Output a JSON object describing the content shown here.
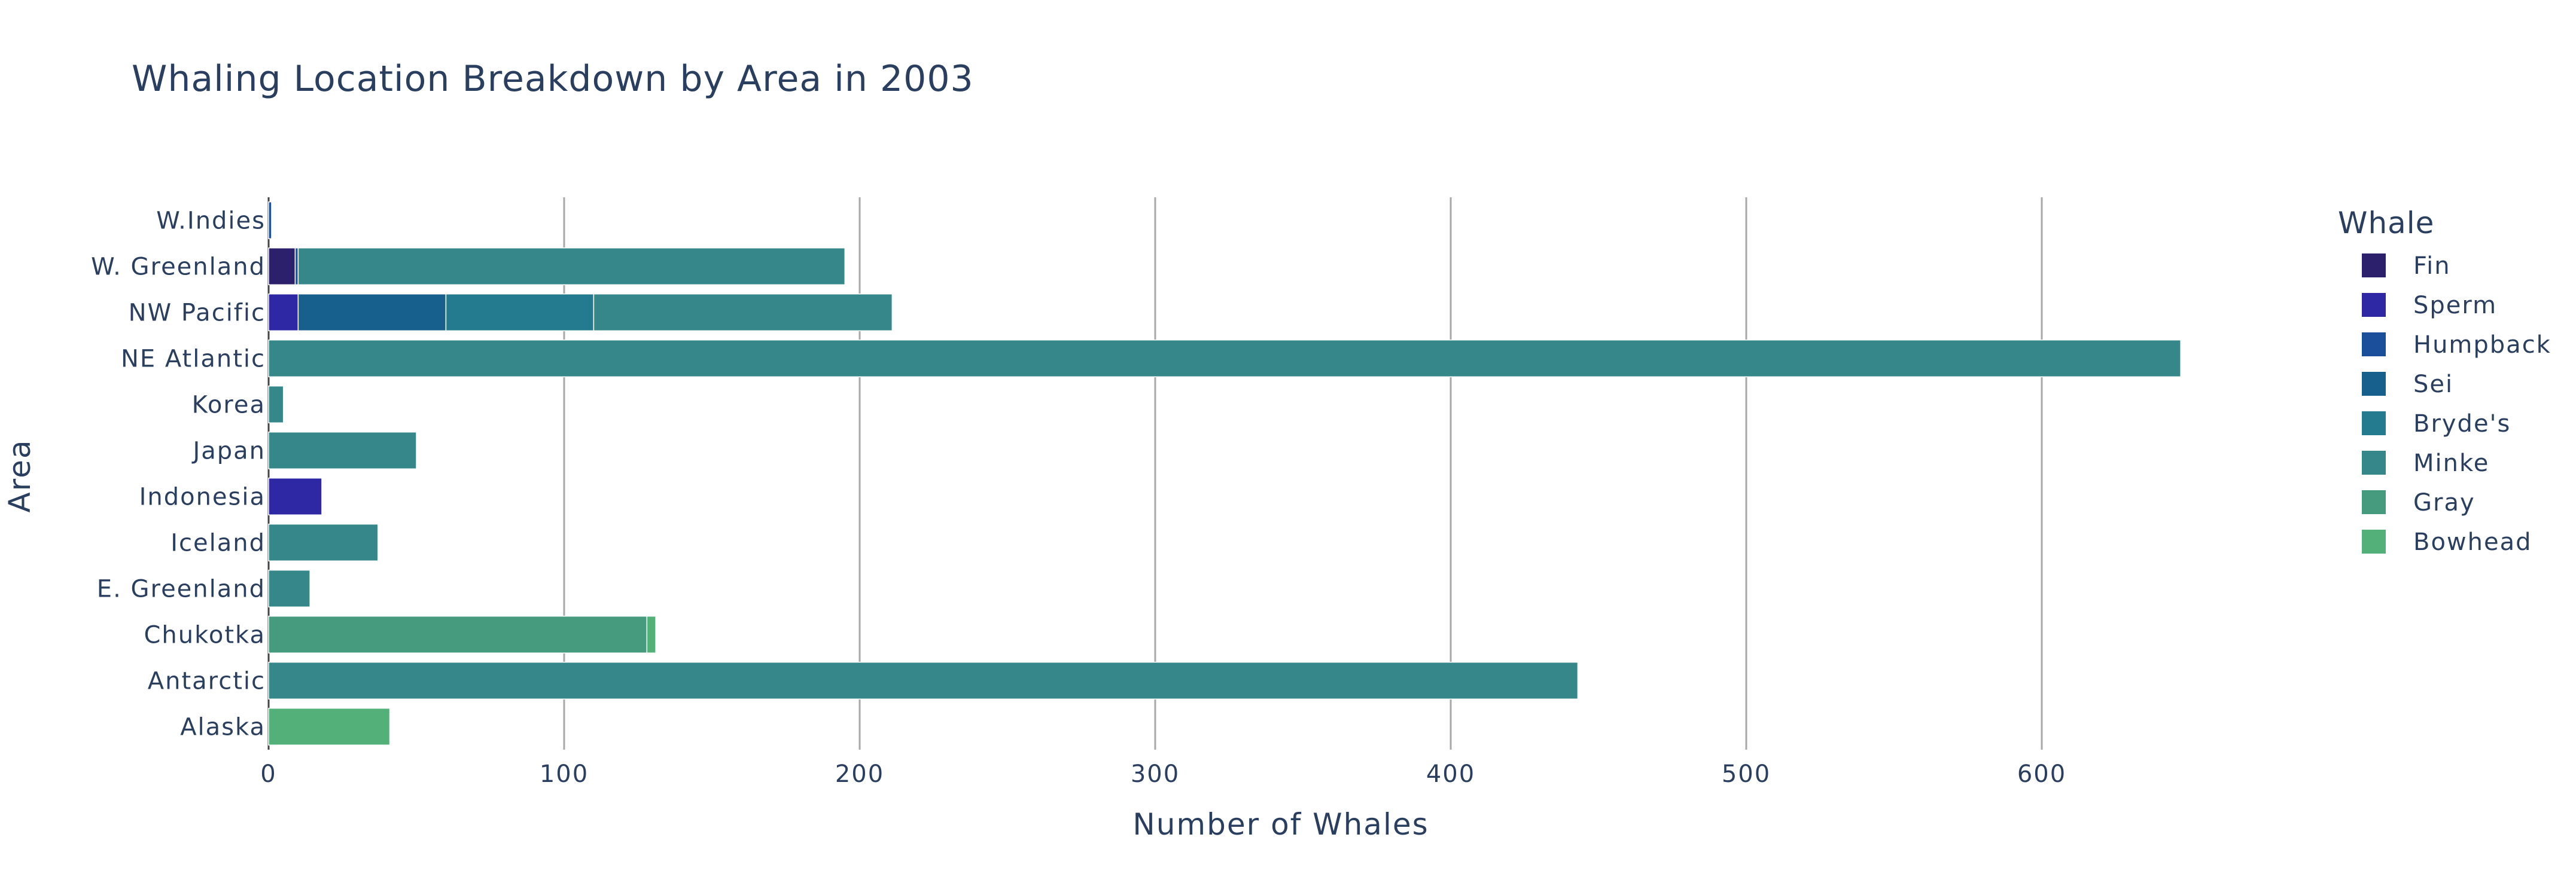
{
  "chart_data": {
    "type": "bar",
    "orientation": "horizontal",
    "barmode": "stack",
    "title": "Whaling Location Breakdown by Area in 2003",
    "xlabel": "Number of Whales",
    "ylabel": "Area",
    "xlim": [
      0,
      650
    ],
    "x_ticks": [
      "0",
      "100",
      "200",
      "300",
      "400",
      "500",
      "600"
    ],
    "grid": true,
    "legend_title": "Whale",
    "legend_position": "right",
    "categories": [
      "Alaska",
      "Antarctic",
      "Chukotka",
      "E. Greenland",
      "Iceland",
      "Indonesia",
      "Japan",
      "Korea",
      "NE Atlantic",
      "NW Pacific",
      "W. Greenland",
      "W.Indies"
    ],
    "series": [
      {
        "name": "Fin",
        "color": "#2c1f6b",
        "values": [
          0,
          0,
          0,
          0,
          0,
          0,
          0,
          0,
          0,
          0,
          9,
          0
        ]
      },
      {
        "name": "Sperm",
        "color": "#2f28a5",
        "values": [
          0,
          0,
          0,
          0,
          0,
          18,
          0,
          0,
          0,
          10,
          0,
          0
        ]
      },
      {
        "name": "Humpback",
        "color": "#1b4f9c",
        "values": [
          0,
          0,
          0,
          0,
          0,
          0,
          0,
          0,
          0,
          0,
          1,
          1
        ]
      },
      {
        "name": "Sei",
        "color": "#175f8c",
        "values": [
          0,
          0,
          0,
          0,
          0,
          0,
          0,
          0,
          0,
          50,
          0,
          0
        ]
      },
      {
        "name": "Bryde's",
        "color": "#247a8f",
        "values": [
          0,
          0,
          0,
          0,
          0,
          0,
          0,
          0,
          0,
          50,
          0,
          0
        ]
      },
      {
        "name": "Minke",
        "color": "#358789",
        "values": [
          0,
          443,
          0,
          14,
          37,
          0,
          50,
          5,
          647,
          101,
          185,
          0
        ]
      },
      {
        "name": "Gray",
        "color": "#469a7e",
        "values": [
          0,
          0,
          128,
          0,
          0,
          0,
          0,
          0,
          0,
          0,
          0,
          0
        ]
      },
      {
        "name": "Bowhead",
        "color": "#53b079",
        "values": [
          41,
          0,
          3,
          0,
          0,
          0,
          0,
          0,
          0,
          0,
          0,
          0
        ]
      }
    ]
  }
}
